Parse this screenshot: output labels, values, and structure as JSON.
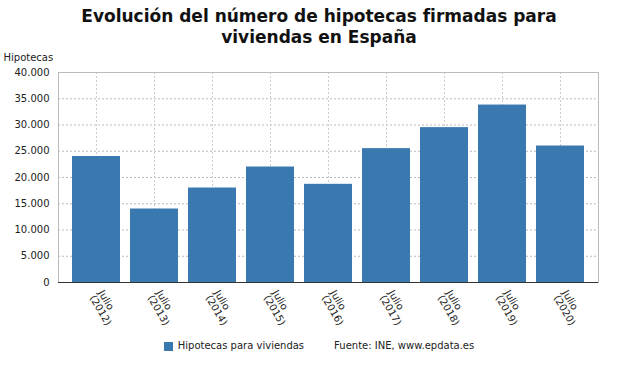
{
  "chart_data": {
    "type": "bar",
    "title": "Evolución del número de hipotecas firmadas para viviendas en España",
    "y_label": "Hipotecas",
    "source": "Fuente: INE, www.epdata.es",
    "categories": [
      "Julio (2012)",
      "Julio (2013)",
      "Julio (2014)",
      "Julio (2015)",
      "Julio (2016)",
      "Julio (2017)",
      "Julio (2018)",
      "Julio (2019)",
      "Julio (2020)"
    ],
    "series": [
      {
        "name": "Hipotecas para viviendas",
        "color": "#3a78b0",
        "values": [
          24000,
          14000,
          18000,
          22000,
          18700,
          25500,
          29500,
          33800,
          26000
        ]
      }
    ],
    "ylim": [
      0,
      40000
    ],
    "yticks": [
      0,
      {
        "value": 5000,
        "label": "5.000"
      },
      {
        "value": 10000,
        "label": "10.000"
      },
      {
        "value": 15000,
        "label": "15.000"
      },
      {
        "value": 20000,
        "label": "20.000"
      },
      {
        "value": 25000,
        "label": "25.000"
      },
      {
        "value": 30000,
        "label": "30.000"
      },
      {
        "value": 35000,
        "label": "35.000"
      },
      {
        "value": 40000,
        "label": "40.000"
      }
    ],
    "grid": true,
    "legend": "bottom"
  }
}
